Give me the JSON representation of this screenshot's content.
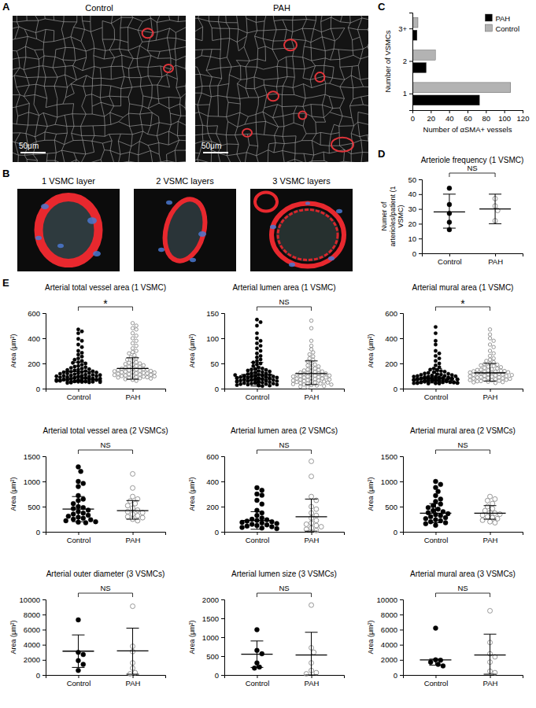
{
  "images": {
    "A": {
      "letter": "A",
      "panels": [
        {
          "label": "Control",
          "scale_bar": "50μm"
        },
        {
          "label": "PAH",
          "scale_bar": "50μm"
        }
      ]
    },
    "B": {
      "letter": "B",
      "panels": [
        {
          "label": "1 VSMC layer"
        },
        {
          "label": "2 VSMC layers"
        },
        {
          "label": "3 VSMC layers"
        }
      ]
    }
  },
  "chart_data": [
    {
      "type": "bar",
      "letter": "C",
      "orientation": "horizontal",
      "x_label": "Number of αSMA+ vessels",
      "y_label": "Number of VSMCs",
      "categories": [
        "1",
        "2",
        "3+"
      ],
      "xlim": [
        0,
        120
      ],
      "xticks": [
        0,
        20,
        40,
        60,
        80,
        100,
        120
      ],
      "legend": "top-right",
      "series": [
        {
          "name": "PAH",
          "color": "#000000",
          "values": [
            73,
            15,
            5
          ]
        },
        {
          "name": "Control",
          "color": "#b3b3b3",
          "values": [
            107,
            25,
            6
          ]
        }
      ]
    },
    {
      "type": "dot",
      "letter": "D",
      "title": "Arteriole frequency (1 VSMC)",
      "y_label": "Numer of arterioles/patient (1 VSMC)",
      "ylim": [
        0,
        50
      ],
      "yticks": [
        0,
        10,
        20,
        30,
        40,
        50
      ],
      "annotation": "NS",
      "series": [
        {
          "name": "Control",
          "color": "#000000",
          "marker": "filled",
          "values": [
            44,
            33,
            27,
            21,
            16
          ],
          "center": 28,
          "lower": 17,
          "upper": 40
        },
        {
          "name": "PAH",
          "color": "#8c8c8c",
          "marker": "open",
          "values": [
            37,
            32,
            29,
            22
          ],
          "center": 30,
          "lower": 20,
          "upper": 40
        }
      ]
    },
    {
      "type": "dot",
      "letter": "E",
      "title": "Arterial total vessel area (1 VSMC)",
      "y_label": "Area (μm²)",
      "ylim": [
        0,
        600
      ],
      "yticks": [
        0,
        200,
        400,
        600
      ],
      "annotation": "*",
      "series": [
        {
          "name": "Control",
          "color": "#000000",
          "marker": "filled",
          "center": 135,
          "lower": 60,
          "upper": 210,
          "values": [
            470,
            455,
            440,
            395,
            380,
            350,
            330,
            300,
            285,
            270,
            255,
            240,
            230,
            220,
            210,
            205,
            200,
            190,
            180,
            175,
            170,
            165,
            160,
            155,
            150,
            148,
            145,
            140,
            138,
            135,
            132,
            130,
            128,
            125,
            122,
            120,
            118,
            115,
            112,
            110,
            108,
            105,
            104,
            102,
            100,
            98,
            96,
            95,
            94,
            92,
            90,
            88,
            87,
            86,
            85,
            84,
            82,
            80,
            79,
            78,
            77,
            76,
            75,
            74,
            73,
            72,
            71,
            70,
            69,
            68,
            67,
            66,
            65,
            64,
            63,
            62,
            61,
            60,
            59,
            58,
            57,
            56,
            55,
            54,
            53,
            52,
            51,
            50,
            48,
            45
          ]
        },
        {
          "name": "PAH",
          "color": "#8c8c8c",
          "marker": "open",
          "center": 160,
          "lower": 75,
          "upper": 245,
          "values": [
            520,
            500,
            480,
            470,
            440,
            420,
            400,
            380,
            360,
            340,
            320,
            300,
            290,
            280,
            265,
            250,
            240,
            230,
            220,
            210,
            205,
            200,
            195,
            190,
            185,
            180,
            175,
            170,
            165,
            160,
            158,
            155,
            152,
            150,
            148,
            145,
            142,
            140,
            138,
            135,
            132,
            130,
            128,
            125,
            122,
            120,
            118,
            115,
            112,
            110,
            108,
            105,
            102,
            100,
            98,
            95,
            92,
            90,
            88,
            85,
            82,
            80,
            75,
            70,
            62
          ]
        }
      ]
    },
    {
      "type": "dot",
      "title": "Arterial lumen area (1 VSMC)",
      "y_label": "Area (μm²)",
      "ylim": [
        0,
        150
      ],
      "yticks": [
        0,
        50,
        100,
        150
      ],
      "annotation": "NS",
      "series": [
        {
          "name": "Control",
          "color": "#000000",
          "marker": "filled",
          "center": 28,
          "lower": 5,
          "upper": 52,
          "values": [
            137,
            132,
            125,
            110,
            100,
            95,
            90,
            85,
            80,
            75,
            70,
            65,
            62,
            58,
            55,
            52,
            50,
            48,
            45,
            42,
            40,
            39,
            38,
            37,
            36,
            35,
            34,
            33,
            32,
            31,
            30,
            29,
            28,
            27,
            26,
            25,
            25,
            24,
            24,
            23,
            23,
            22,
            22,
            21,
            21,
            20,
            20,
            19,
            19,
            18,
            18,
            17,
            17,
            16,
            16,
            15,
            15,
            14,
            14,
            13,
            13,
            12,
            12,
            11,
            11,
            10,
            10,
            9,
            9,
            8,
            8,
            7,
            7,
            6,
            6,
            5,
            20,
            21,
            22,
            18,
            19,
            17,
            23,
            24,
            16,
            15,
            14,
            26,
            27,
            25
          ]
        },
        {
          "name": "PAH",
          "color": "#8c8c8c",
          "marker": "open",
          "center": 30,
          "lower": 8,
          "upper": 55,
          "values": [
            135,
            120,
            95,
            85,
            78,
            72,
            68,
            64,
            60,
            57,
            54,
            50,
            48,
            46,
            44,
            42,
            40,
            38,
            37,
            36,
            35,
            34,
            33,
            32,
            31,
            30,
            30,
            29,
            28,
            28,
            27,
            26,
            26,
            25,
            24,
            24,
            23,
            22,
            22,
            21,
            20,
            20,
            19,
            18,
            18,
            17,
            16,
            16,
            15,
            14,
            14,
            13,
            12,
            12,
            11,
            10,
            10,
            9,
            8,
            8,
            7,
            6,
            5,
            4,
            3
          ]
        }
      ]
    },
    {
      "type": "dot",
      "title": "Arterial mural area (1 VSMC)",
      "y_label": "Area (μm²)",
      "ylim": [
        0,
        600
      ],
      "yticks": [
        0,
        200,
        400,
        600
      ],
      "annotation": "*",
      "series": [
        {
          "name": "Control",
          "color": "#000000",
          "marker": "filled",
          "center": 80,
          "lower": 45,
          "upper": 160,
          "values": [
            490,
            440,
            380,
            350,
            300,
            280,
            260,
            240,
            220,
            200,
            185,
            170,
            160,
            150,
            145,
            140,
            135,
            130,
            125,
            120,
            118,
            115,
            112,
            110,
            108,
            105,
            102,
            100,
            98,
            96,
            95,
            94,
            92,
            90,
            89,
            88,
            87,
            86,
            85,
            84,
            83,
            82,
            81,
            80,
            79,
            78,
            77,
            76,
            75,
            74,
            73,
            72,
            71,
            70,
            69,
            68,
            67,
            66,
            65,
            64,
            63,
            62,
            61,
            60,
            59,
            58,
            57,
            56,
            55,
            54,
            53,
            52,
            51,
            50,
            49,
            48,
            47,
            46,
            45,
            44,
            43,
            42,
            41,
            40,
            85,
            80,
            75,
            70,
            65,
            60
          ]
        },
        {
          "name": "PAH",
          "color": "#8c8c8c",
          "marker": "open",
          "center": 125,
          "lower": 60,
          "upper": 200,
          "values": [
            470,
            430,
            400,
            380,
            350,
            330,
            300,
            280,
            260,
            240,
            230,
            220,
            210,
            200,
            195,
            190,
            185,
            180,
            175,
            170,
            165,
            160,
            155,
            150,
            148,
            145,
            142,
            140,
            138,
            135,
            132,
            130,
            128,
            125,
            122,
            120,
            118,
            115,
            112,
            110,
            108,
            105,
            102,
            100,
            98,
            95,
            92,
            90,
            88,
            85,
            82,
            80,
            78,
            75,
            72,
            70,
            68,
            65,
            62,
            60,
            58,
            55,
            52,
            50,
            45
          ]
        }
      ]
    },
    {
      "type": "dot",
      "title": "Arterial total vessel area (2 VSMCs)",
      "y_label": "Area (μm²)",
      "ylim": [
        0,
        1500
      ],
      "yticks": [
        0,
        500,
        1000,
        1500
      ],
      "annotation": "NS",
      "series": [
        {
          "name": "Control",
          "color": "#000000",
          "marker": "filled",
          "center": 450,
          "lower": 200,
          "upper": 700,
          "values": [
            1290,
            1200,
            1000,
            960,
            900,
            720,
            650,
            620,
            560,
            500,
            480,
            460,
            430,
            400,
            370,
            350,
            330,
            310,
            290,
            270,
            250,
            240,
            220,
            200,
            190,
            180
          ]
        },
        {
          "name": "PAH",
          "color": "#8c8c8c",
          "marker": "open",
          "center": 420,
          "lower": 250,
          "upper": 620,
          "values": [
            1150,
            870,
            700,
            650,
            610,
            560,
            520,
            470,
            430,
            400,
            380,
            350,
            320,
            300,
            280,
            250,
            220
          ]
        }
      ]
    },
    {
      "type": "dot",
      "title": "Arterial lumen area (2 VSMCs)",
      "y_label": "Area (μm²)",
      "ylim": [
        0,
        600
      ],
      "yticks": [
        0,
        200,
        400,
        600
      ],
      "annotation": "NS",
      "series": [
        {
          "name": "Control",
          "color": "#000000",
          "marker": "filled",
          "center": 90,
          "lower": 20,
          "upper": 160,
          "values": [
            350,
            330,
            300,
            290,
            250,
            220,
            170,
            150,
            130,
            110,
            100,
            95,
            90,
            85,
            80,
            75,
            70,
            65,
            60,
            55,
            50,
            45,
            40,
            35,
            30,
            25
          ]
        },
        {
          "name": "PAH",
          "color": "#8c8c8c",
          "marker": "open",
          "center": 120,
          "lower": 5,
          "upper": 260,
          "values": [
            560,
            440,
            280,
            250,
            200,
            180,
            150,
            130,
            110,
            90,
            70,
            60,
            50,
            40,
            30,
            20,
            10
          ]
        }
      ]
    },
    {
      "type": "dot",
      "title": "Arterial mural area (2 VSMCs)",
      "y_label": "Area (μm²)",
      "ylim": [
        0,
        1500
      ],
      "yticks": [
        0,
        500,
        1000,
        1500
      ],
      "annotation": "NS",
      "series": [
        {
          "name": "Control",
          "color": "#000000",
          "marker": "filled",
          "center": 370,
          "lower": 180,
          "upper": 560,
          "values": [
            1000,
            940,
            880,
            800,
            720,
            650,
            600,
            550,
            520,
            480,
            450,
            420,
            400,
            380,
            360,
            340,
            320,
            300,
            280,
            260,
            240,
            220,
            200,
            180,
            160,
            130
          ]
        },
        {
          "name": "PAH",
          "color": "#8c8c8c",
          "marker": "open",
          "center": 370,
          "lower": 250,
          "upper": 520,
          "values": [
            700,
            650,
            620,
            560,
            500,
            460,
            420,
            380,
            370,
            350,
            330,
            300,
            280,
            260,
            230,
            200,
            180
          ]
        }
      ]
    },
    {
      "type": "dot",
      "title": "Arterial outer diameter (3 VSMCs)",
      "y_label": "Area (μm²)",
      "ylim": [
        0,
        10000
      ],
      "yticks": [
        0,
        2000,
        4000,
        6000,
        8000,
        10000
      ],
      "annotation": "NS",
      "series": [
        {
          "name": "Control",
          "color": "#000000",
          "marker": "filled",
          "center": 3150,
          "lower": 1000,
          "upper": 5300,
          "values": [
            7300,
            3000,
            2700,
            1900,
            1400,
            600
          ]
        },
        {
          "name": "PAH",
          "color": "#8c8c8c",
          "marker": "open",
          "center": 3200,
          "lower": 100,
          "upper": 6200,
          "values": [
            9100,
            3800,
            3100,
            1600,
            900,
            300,
            150
          ]
        }
      ]
    },
    {
      "type": "dot",
      "title": "Arterial lumen size (3 VSMCs)",
      "y_label": "Area (μm²)",
      "ylim": [
        0,
        2000
      ],
      "yticks": [
        0,
        500,
        1000,
        1500,
        2000
      ],
      "annotation": "NS",
      "series": [
        {
          "name": "Control",
          "color": "#000000",
          "marker": "filled",
          "center": 550,
          "lower": 200,
          "upper": 900,
          "values": [
            1200,
            650,
            560,
            320,
            210,
            180
          ]
        },
        {
          "name": "PAH",
          "color": "#8c8c8c",
          "marker": "open",
          "center": 530,
          "lower": 0,
          "upper": 1130,
          "values": [
            1850,
            720,
            600,
            320,
            120,
            60,
            30
          ]
        }
      ]
    },
    {
      "type": "dot",
      "title": "Arterial mural area (3 VSMCs)",
      "y_label": "Area (μm²)",
      "ylim": [
        0,
        10000
      ],
      "yticks": [
        0,
        2000,
        4000,
        6000,
        8000,
        10000
      ],
      "annotation": "NS",
      "series": [
        {
          "name": "Control",
          "color": "#000000",
          "marker": "filled",
          "center": 2000,
          "lower": 1300,
          "upper": 2100,
          "values": [
            6200,
            2000,
            1950,
            1700,
            1400,
            1200
          ]
        },
        {
          "name": "PAH",
          "color": "#8c8c8c",
          "marker": "open",
          "center": 2650,
          "lower": 100,
          "upper": 5400,
          "values": [
            8500,
            4300,
            2800,
            2400,
            1700,
            500,
            300
          ]
        }
      ]
    }
  ]
}
